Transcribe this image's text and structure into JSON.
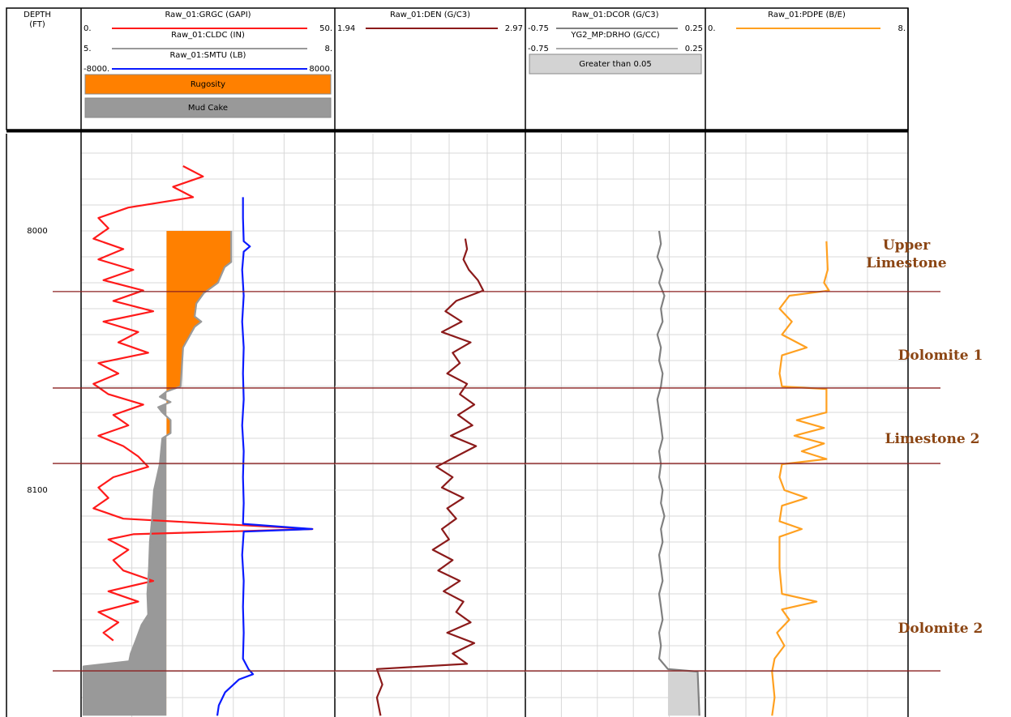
{
  "chart_data": {
    "type": "well_log",
    "depth_title": "DEPTH",
    "depth_unit": "(FT)",
    "ylim": [
      7962.5,
      8187.5
    ],
    "yticks": [
      8000,
      8100
    ],
    "grid_depths": [
      7970,
      7980,
      7990,
      8000,
      8010,
      8020,
      8030,
      8040,
      8050,
      8060,
      8070,
      8080,
      8090,
      8100,
      8110,
      8120,
      8130,
      8140,
      8150,
      8160,
      8170,
      8180
    ],
    "tracks": [
      {
        "divisions": 5,
        "curves": [
          {
            "name": "Raw_01:GRGC (GAPI)",
            "color": "#ff1a1a",
            "xlim": [
              {
                "value": 0,
                "label": "0."
              },
              {
                "value": 50,
                "label": "50."
              }
            ],
            "depth": [
              7975,
              7979,
              7983,
              7987,
              7991,
              7995,
              7999,
              8003,
              8007,
              8011,
              8015,
              8019,
              8023,
              8027,
              8031,
              8035,
              8039,
              8043,
              8047,
              8051,
              8055,
              8059,
              8063,
              8067,
              8071,
              8075,
              8079,
              8083,
              8087,
              8091,
              8095,
              8099,
              8103,
              8107,
              8111,
              8115,
              8117,
              8119,
              8123,
              8127,
              8131,
              8135,
              8139,
              8143,
              8147,
              8151,
              8155,
              8158
            ],
            "values": [
              20,
              24,
              18,
              22,
              9,
              3,
              5,
              2,
              8,
              3,
              10,
              4,
              12,
              6,
              14,
              4,
              11,
              7,
              13,
              3,
              7,
              2,
              5,
              12,
              6,
              9,
              3,
              8,
              11,
              13,
              6,
              3,
              5,
              2,
              8,
              46,
              10,
              5,
              9,
              6,
              8,
              14,
              5,
              11,
              3,
              7,
              4,
              6
            ]
          },
          {
            "name": "Raw_01:CLDC (IN)",
            "color": "#999999",
            "xlim": [
              {
                "value": 5,
                "label": "5."
              },
              {
                "value": 8,
                "label": "8."
              }
            ],
            "depth": [
              8000,
              8012,
              8014,
              8020,
              8024,
              8028,
              8033,
              8035,
              8037,
              8045,
              8055,
              8060,
              8062,
              8064,
              8066,
              8068,
              8070,
              8073,
              8078,
              8080,
              8090,
              8100,
              8110,
              8120,
              8130,
              8140,
              8148,
              8152,
              8158,
              8163,
              8166,
              8168,
              8187
            ],
            "values": [
              6.78,
              6.78,
              6.7,
              6.62,
              6.45,
              6.36,
              6.34,
              6.42,
              6.34,
              6.2,
              6.18,
              6.17,
              6.0,
              5.92,
              6.05,
              5.9,
              5.95,
              6.05,
              6.05,
              5.95,
              5.92,
              5.85,
              5.83,
              5.8,
              5.79,
              5.77,
              5.78,
              5.7,
              5.63,
              5.57,
              5.55,
              5.0,
              5.0
            ]
          },
          {
            "name": "Raw_01:SMTU (LB)",
            "color": "#0a1aff",
            "xlim": [
              {
                "value": -8000,
                "label": "-8000."
              },
              {
                "value": 8000,
                "label": "8000."
              }
            ],
            "depth": [
              7987,
              7995,
              8004,
              8006,
              8008,
              8015,
              8025,
              8035,
              8045,
              8055,
              8065,
              8075,
              8085,
              8095,
              8105,
              8113,
              8115,
              8116,
              8125,
              8135,
              8145,
              8155,
              8165,
              8169,
              8171,
              8173,
              8178,
              8183,
              8187
            ],
            "values": [
              2250,
              2250,
              2300,
              2700,
              2300,
              2200,
              2300,
              2200,
              2300,
              2250,
              2300,
              2200,
              2300,
              2250,
              2300,
              2250,
              6700,
              2300,
              2200,
              2300,
              2250,
              2300,
              2250,
              2600,
              2900,
              2000,
              1100,
              700,
              600
            ]
          }
        ],
        "fills": [
          {
            "name": "Rugosity",
            "color": "#ff8000",
            "curve": 1,
            "baseline": 6.0,
            "side": "above"
          },
          {
            "name": "Mud Cake",
            "color": "#999999",
            "curve": 1,
            "baseline": 6.0,
            "side": "below"
          }
        ]
      },
      {
        "divisions": 5,
        "curves": [
          {
            "name": "Raw_01:DEN (G/C3)",
            "color": "#8b1a1a",
            "xlim": [
              {
                "value": 1.94,
                "label": "1.94"
              },
              {
                "value": 2.97,
                "label": "2.97"
              }
            ],
            "depth": [
              8003,
              8007,
              8011,
              8015,
              8019,
              8023,
              8027,
              8031,
              8035,
              8039,
              8043,
              8047,
              8051,
              8055,
              8059,
              8063,
              8067,
              8071,
              8075,
              8079,
              8083,
              8087,
              8091,
              8095,
              8099,
              8103,
              8107,
              8111,
              8115,
              8119,
              8123,
              8127,
              8131,
              8135,
              8139,
              8143,
              8147,
              8151,
              8155,
              8159,
              8163,
              8167,
              8169,
              8175,
              8180,
              8187
            ],
            "values": [
              2.65,
              2.66,
              2.64,
              2.67,
              2.72,
              2.75,
              2.6,
              2.54,
              2.63,
              2.52,
              2.68,
              2.58,
              2.62,
              2.55,
              2.66,
              2.62,
              2.7,
              2.61,
              2.69,
              2.57,
              2.71,
              2.6,
              2.49,
              2.58,
              2.52,
              2.64,
              2.55,
              2.6,
              2.52,
              2.56,
              2.47,
              2.58,
              2.5,
              2.62,
              2.53,
              2.64,
              2.6,
              2.68,
              2.55,
              2.7,
              2.58,
              2.66,
              2.16,
              2.19,
              2.16,
              2.18
            ]
          }
        ],
        "fills": []
      },
      {
        "divisions": 5,
        "curves": [
          {
            "name": "Raw_01:DCOR (G/C3)",
            "color": "#808080",
            "xlim": [
              {
                "value": -0.75,
                "label": "-0.75"
              },
              {
                "value": 0.25,
                "label": "0.25"
              }
            ],
            "depth": [
              8000,
              8005,
              8010,
              8015,
              8020,
              8025,
              8030,
              8035,
              8040,
              8045,
              8050,
              8055,
              8060,
              8065,
              8070,
              8075,
              8080,
              8085,
              8090,
              8095,
              8100,
              8105,
              8110,
              8115,
              8120,
              8125,
              8130,
              8135,
              8140,
              8145,
              8150,
              8155,
              8160,
              8165,
              8169,
              8170,
              8187
            ],
            "values": [
              0.0,
              0.01,
              -0.01,
              0.02,
              0.0,
              0.03,
              0.01,
              0.02,
              -0.01,
              0.01,
              0.0,
              0.02,
              0.01,
              -0.01,
              0.0,
              0.01,
              0.02,
              0.0,
              0.01,
              0.0,
              0.02,
              0.01,
              0.03,
              0.01,
              0.02,
              0.0,
              0.01,
              0.02,
              0.0,
              0.01,
              0.02,
              0.0,
              0.01,
              0.0,
              0.05,
              0.22,
              0.23
            ]
          },
          {
            "name": "YG2_MP:DRHO (G/CC)",
            "color": "#aaaaaa",
            "xlim": [
              {
                "value": -0.75,
                "label": "-0.75"
              },
              {
                "value": 0.25,
                "label": "0.25"
              }
            ]
          }
        ],
        "fills": [
          {
            "name": "Greater than 0.05",
            "color": "#d3d3d3",
            "curve": 0,
            "baseline": 0.05,
            "side": "above"
          }
        ]
      },
      {
        "divisions": 5,
        "curves": [
          {
            "name": "Raw_01:PDPE (B/E)",
            "color": "#ffa020",
            "xlim": [
              {
                "value": 0,
                "label": "0."
              },
              {
                "value": 8,
                "label": "8."
              }
            ],
            "depth": [
              8004,
              8015,
              8020,
              8023,
              8025,
              8030,
              8035,
              8040,
              8045,
              8048,
              8055,
              8060,
              8061,
              8070,
              8073,
              8076,
              8079,
              8082,
              8085,
              8088,
              8090,
              8095,
              8100,
              8103,
              8106,
              8112,
              8115,
              8118,
              8130,
              8140,
              8143,
              8146,
              8150,
              8155,
              8160,
              8165,
              8170,
              8180,
              8187
            ],
            "values": [
              4.8,
              4.85,
              4.7,
              4.9,
              3.3,
              2.9,
              3.4,
              3.0,
              4.0,
              3.0,
              2.9,
              3.0,
              4.8,
              4.8,
              3.6,
              4.7,
              3.5,
              4.7,
              3.8,
              4.8,
              3.0,
              2.9,
              3.1,
              4.0,
              3.0,
              2.9,
              3.8,
              2.9,
              2.9,
              3.0,
              4.4,
              3.0,
              3.3,
              2.8,
              3.1,
              2.7,
              2.6,
              2.7,
              2.6
            ]
          }
        ],
        "fills": []
      }
    ],
    "zones": [
      {
        "name": "Upper Limestone",
        "depth": 8023.4
      },
      {
        "name": "Dolomite 1",
        "depth": 8060.6
      },
      {
        "name": "Limestone 2",
        "depth": 8089.7
      },
      {
        "name": "Dolomite 2",
        "depth": 8169.7
      }
    ]
  }
}
